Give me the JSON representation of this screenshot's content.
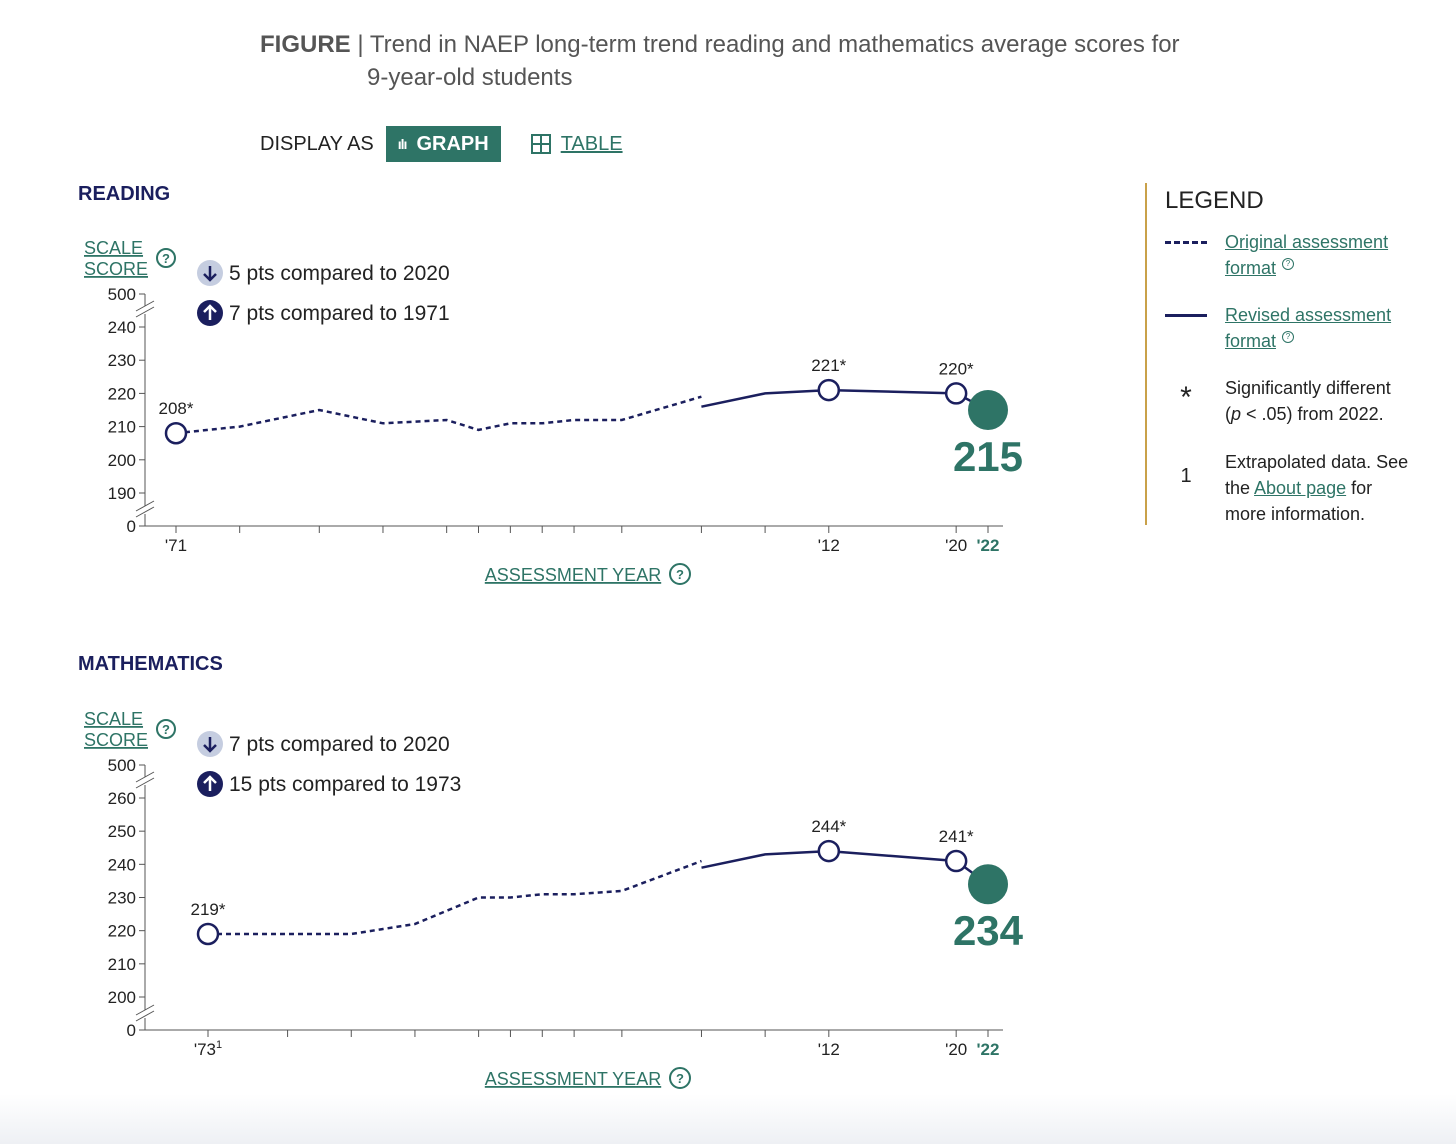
{
  "figure": {
    "label": "FIGURE",
    "separator": "|",
    "title_line1": "Trend in NAEP long-term trend reading and mathematics average scores for",
    "title_line2": "9-year-old students"
  },
  "display": {
    "label": "DISPLAY AS",
    "graph_button": "GRAPH",
    "table_button": "TABLE",
    "selected": "GRAPH"
  },
  "legend": {
    "title": "LEGEND",
    "original_line1": "Original assessment",
    "original_line2": "format",
    "revised_line1": "Revised assessment",
    "revised_line2": "format",
    "sig_symbol": "*",
    "sig_line1": "Significantly different",
    "sig_line2_italic": "p",
    "sig_line2_rest": " < .05) from 2022.",
    "sig_line2_open": "(",
    "extrap_symbol": "1",
    "extrap_line1": "Extrapolated data. See",
    "extrap_line2_pre": "the ",
    "extrap_link": "About page",
    "extrap_line2_post": " for",
    "extrap_line3": "more information."
  },
  "colors": {
    "navy": "#1b1f5e",
    "teal": "#2e7466",
    "gold": "#c9a14a",
    "badge_down_bg": "#c5cde0"
  },
  "icons": [
    "bar-chart-icon",
    "table-grid-icon",
    "question-circle-icon",
    "arrow-down-icon",
    "arrow-up-icon"
  ],
  "chart_data": [
    {
      "type": "line",
      "title": "READING",
      "ylabel_line1": "SCALE",
      "ylabel_line2": "SCORE",
      "xlabel": "ASSESSMENT YEAR",
      "y_ticks": [
        "0",
        "190",
        "200",
        "210",
        "220",
        "230",
        "240",
        "500"
      ],
      "ylim": [
        185,
        245
      ],
      "axis_breaks": true,
      "x_labels": [
        {
          "x": 1971,
          "text": "'71"
        },
        {
          "x": 2012,
          "text": "'12"
        },
        {
          "x": 2020,
          "text": "'20"
        },
        {
          "x": 2022,
          "text": "'22",
          "highlight": true
        }
      ],
      "x_minor_ticks": [
        1975,
        1980,
        1984,
        1988,
        1990,
        1992,
        1994,
        1996,
        1999,
        2004,
        2008
      ],
      "comparisons": [
        {
          "direction": "down",
          "text": "5 pts compared to 2020"
        },
        {
          "direction": "up",
          "text": "7 pts compared to 1971"
        }
      ],
      "series": [
        {
          "name": "Original assessment format",
          "style": "dashed",
          "points": [
            [
              1971,
              208
            ],
            [
              1975,
              210
            ],
            [
              1980,
              215
            ],
            [
              1984,
              211
            ],
            [
              1988,
              212
            ],
            [
              1990,
              209
            ],
            [
              1992,
              211
            ],
            [
              1994,
              211
            ],
            [
              1996,
              212
            ],
            [
              1999,
              212
            ],
            [
              2004,
              219
            ]
          ]
        },
        {
          "name": "Revised assessment format",
          "style": "solid",
          "points": [
            [
              2004,
              216
            ],
            [
              2008,
              220
            ],
            [
              2012,
              221
            ],
            [
              2020,
              220
            ],
            [
              2022,
              215
            ]
          ]
        }
      ],
      "labeled_points": [
        {
          "x": 1971,
          "y": 208,
          "label": "208*"
        },
        {
          "x": 2012,
          "y": 221,
          "label": "221*"
        },
        {
          "x": 2020,
          "y": 220,
          "label": "220*"
        }
      ],
      "highlight_point": {
        "x": 2022,
        "y": 215,
        "label": "215"
      }
    },
    {
      "type": "line",
      "title": "MATHEMATICS",
      "ylabel_line1": "SCALE",
      "ylabel_line2": "SCORE",
      "xlabel": "ASSESSMENT YEAR",
      "y_ticks": [
        "0",
        "200",
        "210",
        "220",
        "230",
        "240",
        "250",
        "260",
        "500"
      ],
      "ylim": [
        195,
        265
      ],
      "axis_breaks": true,
      "x_labels": [
        {
          "x": 1973,
          "text": "'73",
          "sup": "1"
        },
        {
          "x": 2012,
          "text": "'12"
        },
        {
          "x": 2020,
          "text": "'20"
        },
        {
          "x": 2022,
          "text": "'22",
          "highlight": true
        }
      ],
      "x_minor_ticks": [
        1978,
        1982,
        1986,
        1990,
        1992,
        1994,
        1996,
        1999,
        2004,
        2008
      ],
      "comparisons": [
        {
          "direction": "down",
          "text": "7 pts compared to 2020"
        },
        {
          "direction": "up",
          "text": "15 pts compared to 1973"
        }
      ],
      "series": [
        {
          "name": "Original assessment format",
          "style": "dashed",
          "points": [
            [
              1973,
              219
            ],
            [
              1978,
              219
            ],
            [
              1982,
              219
            ],
            [
              1986,
              222
            ],
            [
              1990,
              230
            ],
            [
              1992,
              230
            ],
            [
              1994,
              231
            ],
            [
              1996,
              231
            ],
            [
              1999,
              232
            ],
            [
              2004,
              241
            ]
          ]
        },
        {
          "name": "Revised assessment format",
          "style": "solid",
          "points": [
            [
              2004,
              239
            ],
            [
              2008,
              243
            ],
            [
              2012,
              244
            ],
            [
              2020,
              241
            ],
            [
              2022,
              234
            ]
          ]
        }
      ],
      "labeled_points": [
        {
          "x": 1973,
          "y": 219,
          "label": "219*"
        },
        {
          "x": 2012,
          "y": 244,
          "label": "244*"
        },
        {
          "x": 2020,
          "y": 241,
          "label": "241*"
        }
      ],
      "highlight_point": {
        "x": 2022,
        "y": 234,
        "label": "234"
      }
    }
  ]
}
